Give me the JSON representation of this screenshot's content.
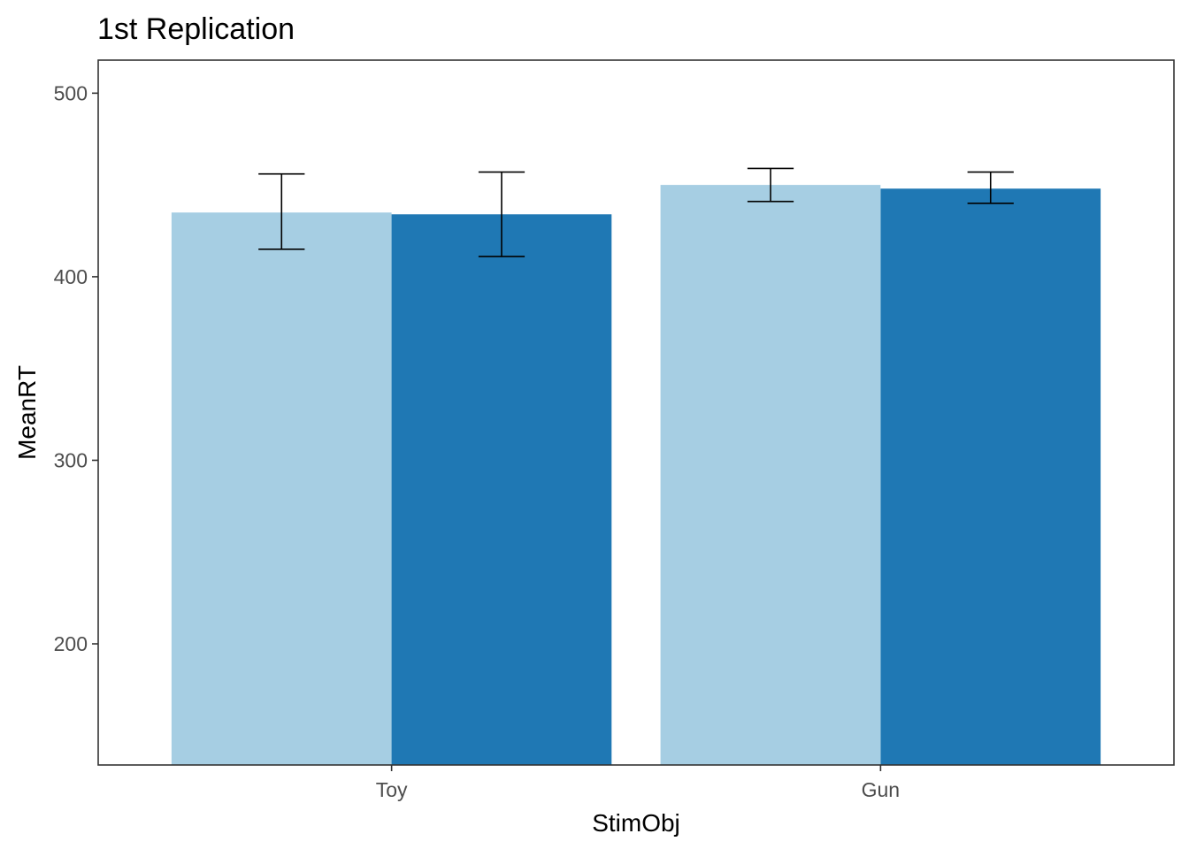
{
  "chart_data": {
    "type": "bar",
    "title": "1st Replication",
    "xlabel": "StimObj",
    "ylabel": "MeanRT",
    "categories": [
      "Toy",
      "Gun"
    ],
    "series": [
      {
        "color": "#a6cee3",
        "values": [
          435,
          450
        ],
        "error_low": [
          415,
          441
        ],
        "error_high": [
          456,
          459
        ]
      },
      {
        "color": "#1f78b4",
        "values": [
          434,
          448
        ],
        "error_low": [
          411,
          440
        ],
        "error_high": [
          457,
          457
        ]
      }
    ],
    "ylim": [
      134,
      518
    ],
    "yticks": [
      200,
      300,
      400,
      500
    ],
    "grid": false,
    "legend": "none"
  }
}
